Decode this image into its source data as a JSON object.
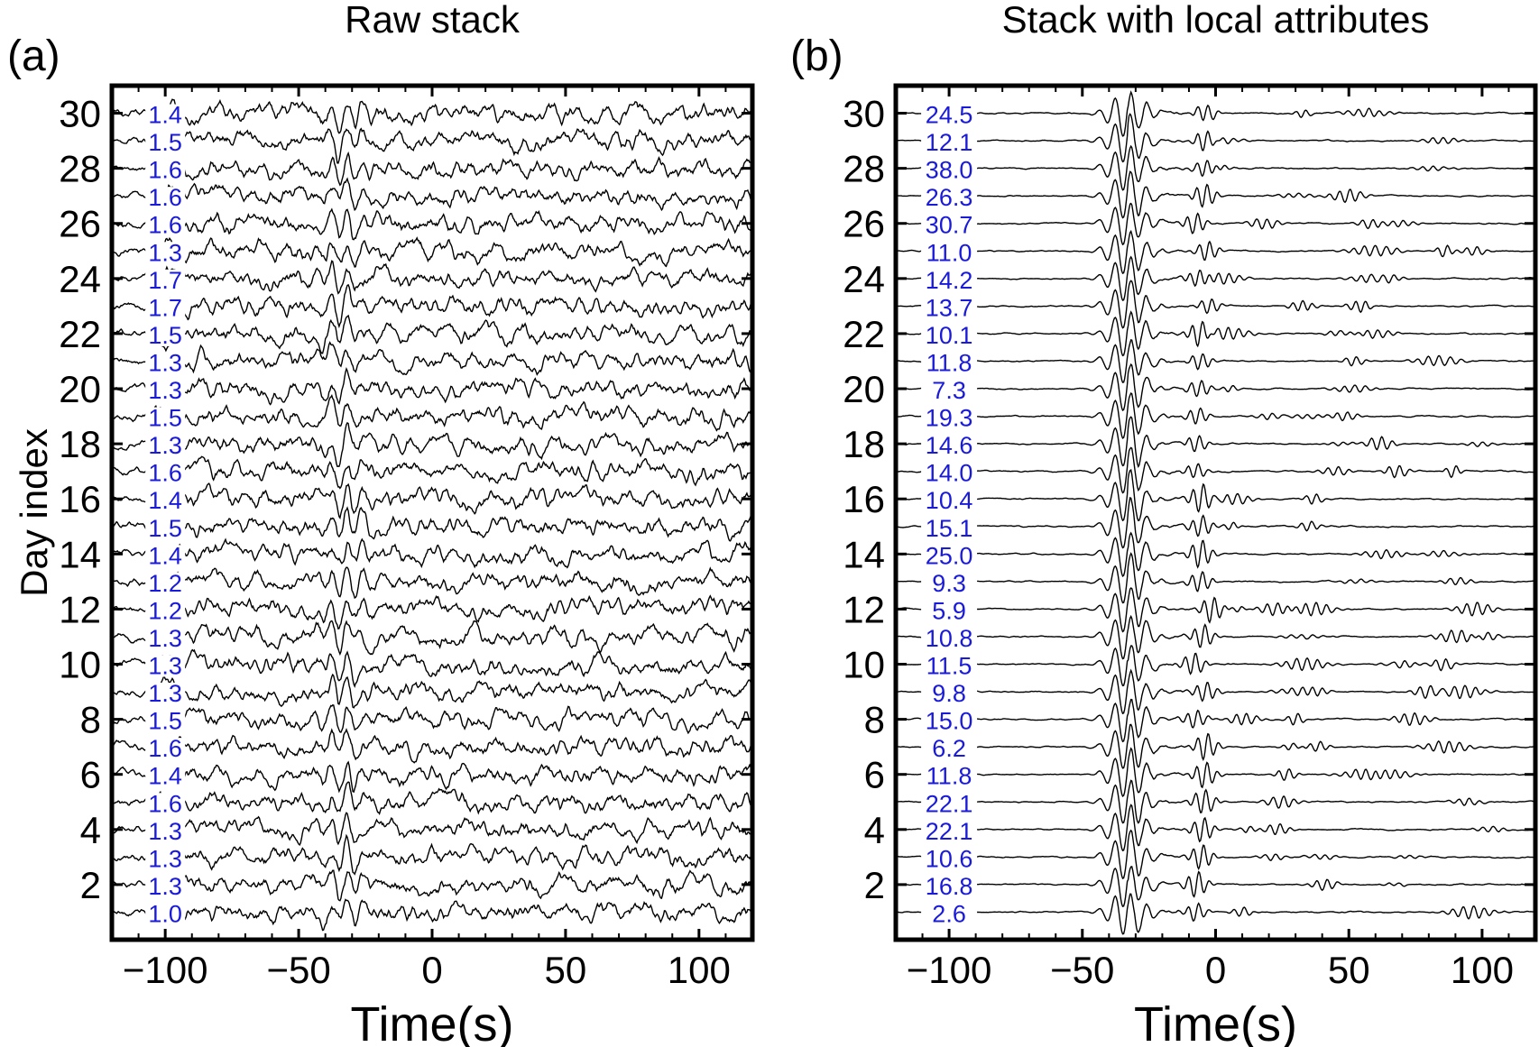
{
  "figure": {
    "panel_a_label": "(a)",
    "panel_b_label": "(b)"
  },
  "chart_data": [
    {
      "type": "line",
      "title": "Raw stack",
      "xlabel": "Time(s)",
      "ylabel": "Day index",
      "xlim": [
        -120,
        120
      ],
      "ylim": [
        0,
        31
      ],
      "x_ticks": [
        -100,
        -50,
        0,
        50,
        100
      ],
      "x_tick_labels": [
        "−100",
        "−50",
        "0",
        "50",
        "100"
      ],
      "y_ticks": [
        2,
        4,
        6,
        8,
        10,
        12,
        14,
        16,
        18,
        20,
        22,
        24,
        26,
        28,
        30
      ],
      "y_tick_labels": [
        "2",
        "4",
        "6",
        "8",
        "10",
        "12",
        "14",
        "16",
        "18",
        "20",
        "22",
        "24",
        "26",
        "28",
        "30"
      ],
      "grid": false,
      "trace_color": "#000000",
      "annotation_color": "#1a1adb",
      "days": [
        1,
        2,
        3,
        4,
        5,
        6,
        7,
        8,
        9,
        10,
        11,
        12,
        13,
        14,
        15,
        16,
        17,
        18,
        19,
        20,
        21,
        22,
        23,
        24,
        25,
        26,
        27,
        28,
        29,
        30
      ],
      "day_annotations": [
        "1.0",
        "1.3",
        "1.3",
        "1.3",
        "1.6",
        "1.4",
        "1.6",
        "1.5",
        "1.3",
        "1.3",
        "1.3",
        "1.2",
        "1.2",
        "1.4",
        "1.5",
        "1.4",
        "1.6",
        "1.3",
        "1.5",
        "1.3",
        "1.3",
        "1.5",
        "1.7",
        "1.7",
        "1.3",
        "1.6",
        "1.6",
        "1.6",
        "1.5",
        "1.4"
      ]
    },
    {
      "type": "line",
      "title": "Stack with local attributes",
      "xlabel": "Time(s)",
      "ylabel": "",
      "xlim": [
        -120,
        120
      ],
      "ylim": [
        0,
        31
      ],
      "x_ticks": [
        -100,
        -50,
        0,
        50,
        100
      ],
      "x_tick_labels": [
        "−100",
        "−50",
        "0",
        "50",
        "100"
      ],
      "y_ticks": [
        2,
        4,
        6,
        8,
        10,
        12,
        14,
        16,
        18,
        20,
        22,
        24,
        26,
        28,
        30
      ],
      "y_tick_labels": [
        "2",
        "4",
        "6",
        "8",
        "10",
        "12",
        "14",
        "16",
        "18",
        "20",
        "22",
        "24",
        "26",
        "28",
        "30"
      ],
      "grid": false,
      "trace_color": "#000000",
      "annotation_color": "#1a1adb",
      "days": [
        1,
        2,
        3,
        4,
        5,
        6,
        7,
        8,
        9,
        10,
        11,
        12,
        13,
        14,
        15,
        16,
        17,
        18,
        19,
        20,
        21,
        22,
        23,
        24,
        25,
        26,
        27,
        28,
        29,
        30
      ],
      "day_annotations": [
        "2.6",
        "16.8",
        "10.6",
        "22.1",
        "22.1",
        "11.8",
        "6.2",
        "15.0",
        "9.8",
        "11.5",
        "10.8",
        "5.9",
        "9.3",
        "25.0",
        "15.1",
        "10.4",
        "14.0",
        "14.6",
        "19.3",
        "7.3",
        "11.8",
        "10.1",
        "13.7",
        "14.2",
        "11.0",
        "30.7",
        "26.3",
        "38.0",
        "12.1",
        "24.5"
      ]
    }
  ]
}
